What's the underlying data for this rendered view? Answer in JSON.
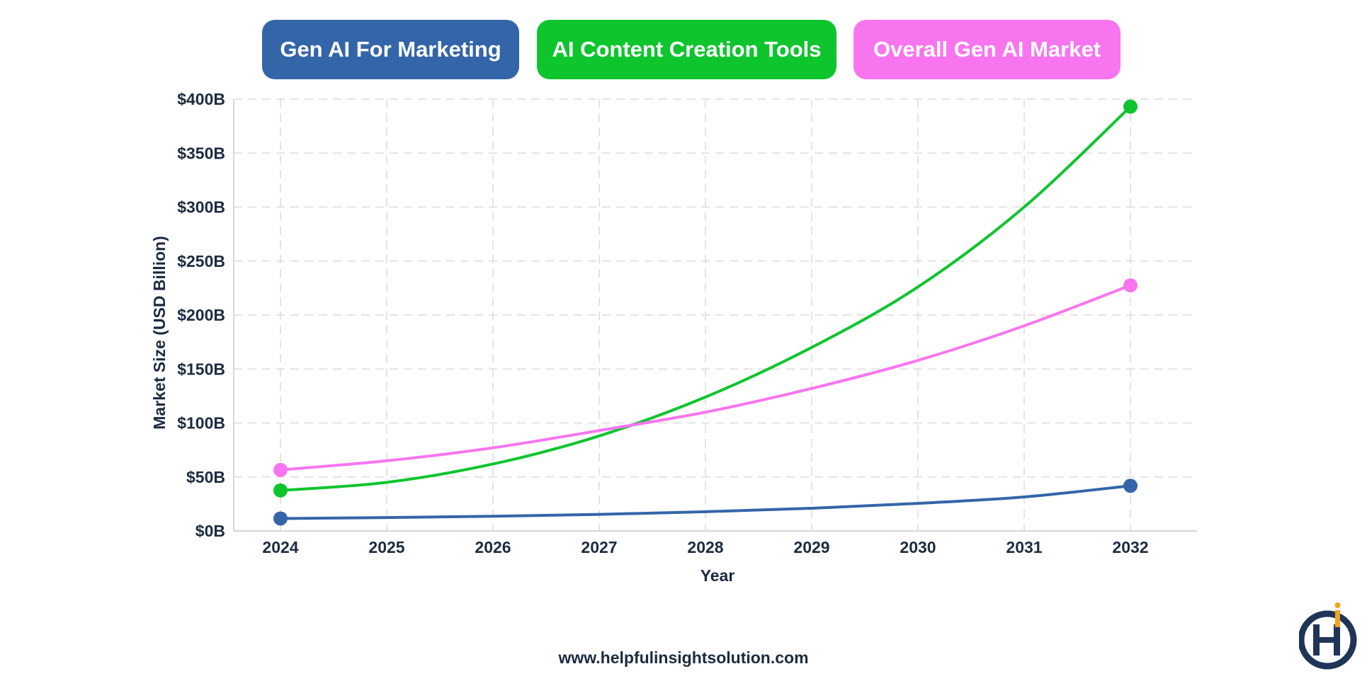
{
  "chart_data": {
    "type": "line",
    "x": [
      2024,
      2025,
      2026,
      2027,
      2028,
      2029,
      2030,
      2031,
      2032
    ],
    "series": [
      {
        "name": "Gen AI For Marketing",
        "color": "#3465a8",
        "values": [
          11.5,
          12.4,
          13.6,
          15.3,
          17.8,
          21.0,
          25.5,
          31.5,
          41.8
        ]
      },
      {
        "name": "AI Content Creation Tools",
        "color": "#0ec52e",
        "values": [
          37.5,
          45.0,
          62.0,
          88.0,
          124.0,
          170.0,
          226.0,
          300.0,
          393.0
        ]
      },
      {
        "name": "Overall Gen AI Market",
        "color": "#f975f0",
        "values": [
          56.5,
          65.0,
          77.0,
          93.0,
          110.0,
          132.0,
          158.0,
          190.0,
          227.5
        ]
      }
    ],
    "ylim": [
      0,
      400
    ],
    "yticks": [
      0,
      50,
      100,
      150,
      200,
      250,
      300,
      350,
      400
    ],
    "ytick_labels": [
      "$0B",
      "$50B",
      "$100B",
      "$150B",
      "$200B",
      "$250B",
      "$300B",
      "$350B",
      "$400B"
    ],
    "xlabel": "Year",
    "ylabel": "Market Size (USD Billion)",
    "grid": true,
    "legend_position": "top"
  },
  "footer": {
    "url": "www.helpfulinsightsolution.com"
  },
  "logo": {
    "label": "helpful insight logo",
    "text": "Hi"
  }
}
